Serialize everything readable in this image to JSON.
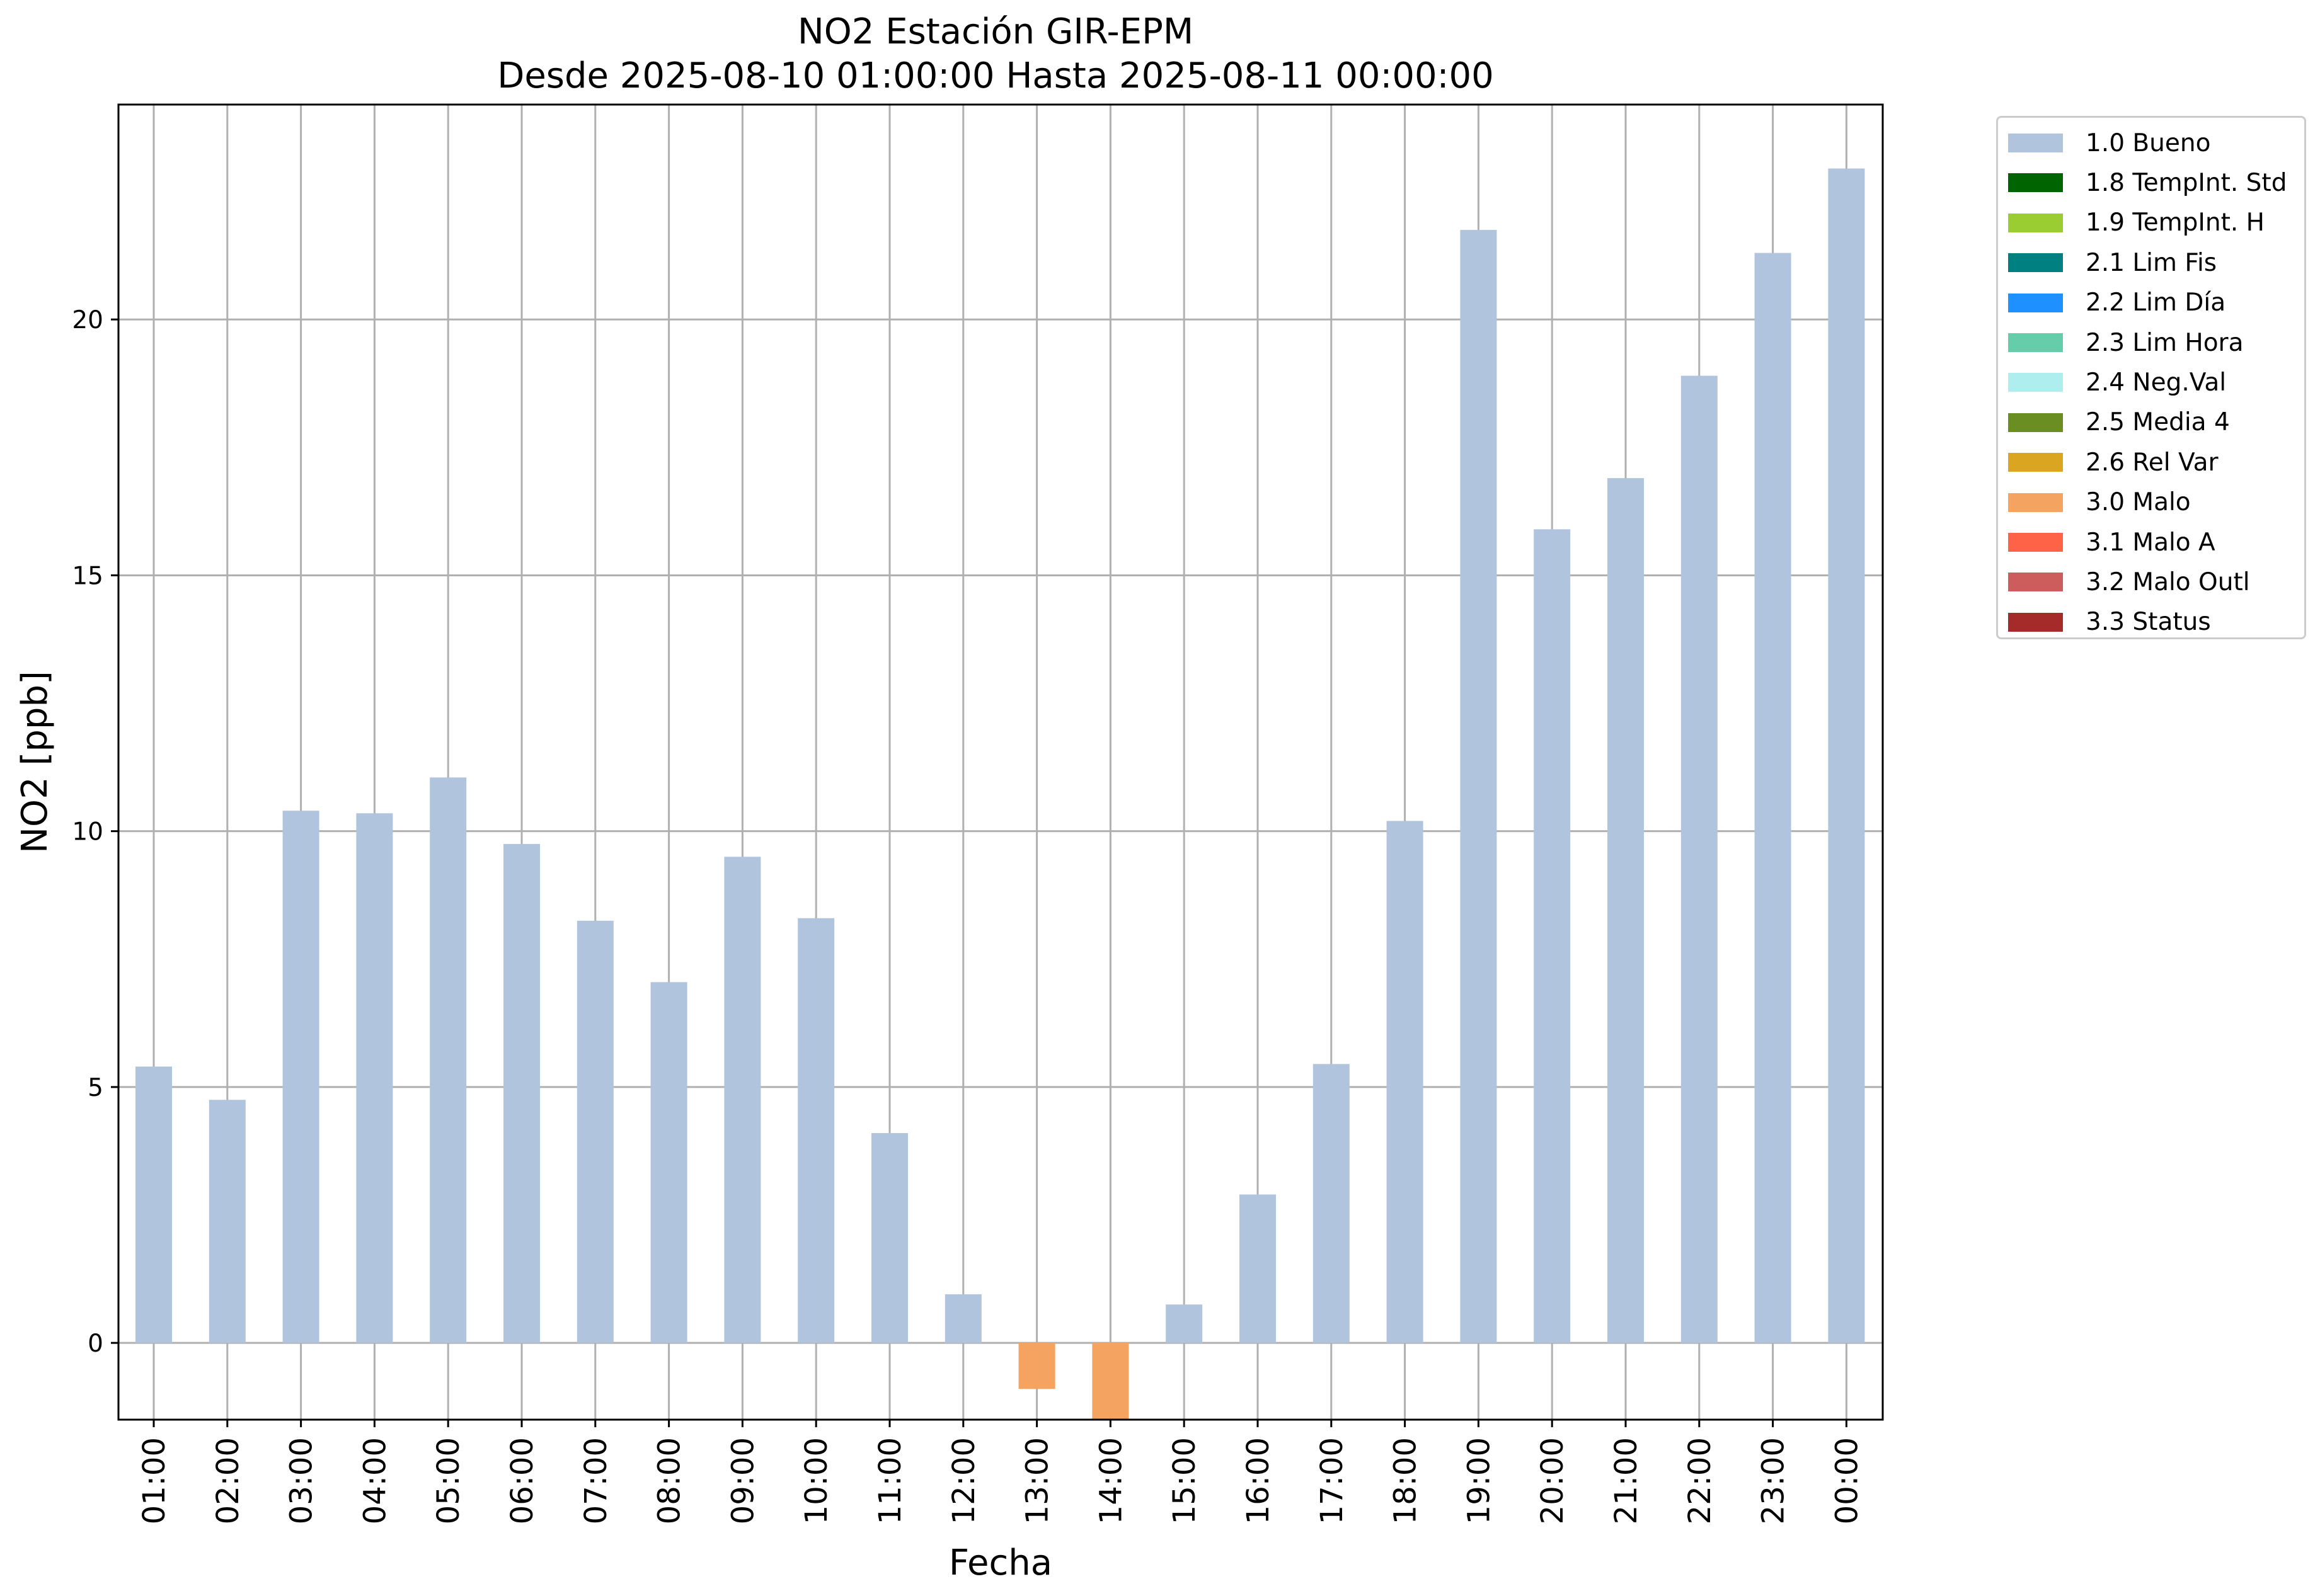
{
  "chart_data": {
    "type": "bar",
    "title": "NO2 Estación GIR-EPM",
    "subtitle": "Desde 2025-08-10 01:00:00 Hasta 2025-08-11 00:00:00",
    "xlabel": "Fecha",
    "ylabel": "NO2 [ppb]",
    "categories": [
      "01:00",
      "02:00",
      "03:00",
      "04:00",
      "05:00",
      "06:00",
      "07:00",
      "08:00",
      "09:00",
      "10:00",
      "11:00",
      "12:00",
      "13:00",
      "14:00",
      "15:00",
      "16:00",
      "17:00",
      "18:00",
      "19:00",
      "20:00",
      "21:00",
      "22:00",
      "23:00",
      "00:00"
    ],
    "values": [
      5.4,
      4.75,
      10.4,
      10.35,
      11.05,
      9.75,
      8.25,
      7.05,
      9.5,
      8.3,
      4.1,
      0.95,
      -0.9,
      -1.7,
      0.75,
      2.9,
      5.45,
      10.2,
      21.75,
      15.9,
      16.9,
      18.9,
      21.3,
      22.95
    ],
    "flags": [
      "1.0 Bueno",
      "1.0 Bueno",
      "1.0 Bueno",
      "1.0 Bueno",
      "1.0 Bueno",
      "1.0 Bueno",
      "1.0 Bueno",
      "1.0 Bueno",
      "1.0 Bueno",
      "1.0 Bueno",
      "1.0 Bueno",
      "1.0 Bueno",
      "3.0 Malo",
      "3.0 Malo",
      "1.0 Bueno",
      "1.0 Bueno",
      "1.0 Bueno",
      "1.0 Bueno",
      "1.0 Bueno",
      "1.0 Bueno",
      "1.0 Bueno",
      "1.0 Bueno",
      "1.0 Bueno",
      "1.0 Bueno"
    ],
    "ylim": [
      -1.5,
      24.2
    ],
    "yticks": [
      0,
      5,
      10,
      15,
      20
    ],
    "grid": true,
    "legend_position": "outside-top-right",
    "legend": [
      {
        "label": "1.0 Bueno",
        "color": "#b0c4de"
      },
      {
        "label": "1.8 TempInt. Std",
        "color": "#006400"
      },
      {
        "label": "1.9 TempInt. H",
        "color": "#9acd32"
      },
      {
        "label": "2.1 Lim Fis",
        "color": "#008080"
      },
      {
        "label": "2.2 Lim Día",
        "color": "#1e90ff"
      },
      {
        "label": "2.3 Lim Hora",
        "color": "#66cdaa"
      },
      {
        "label": "2.4 Neg.Val",
        "color": "#afeeee"
      },
      {
        "label": "2.5 Media 4",
        "color": "#6b8e23"
      },
      {
        "label": "2.6 Rel Var",
        "color": "#daa520"
      },
      {
        "label": "3.0 Malo",
        "color": "#f4a460"
      },
      {
        "label": "3.1 Malo A",
        "color": "#ff6347"
      },
      {
        "label": "3.2 Malo Outl",
        "color": "#cd5c5c"
      },
      {
        "label": "3.3 Status",
        "color": "#a52a2a"
      }
    ]
  }
}
